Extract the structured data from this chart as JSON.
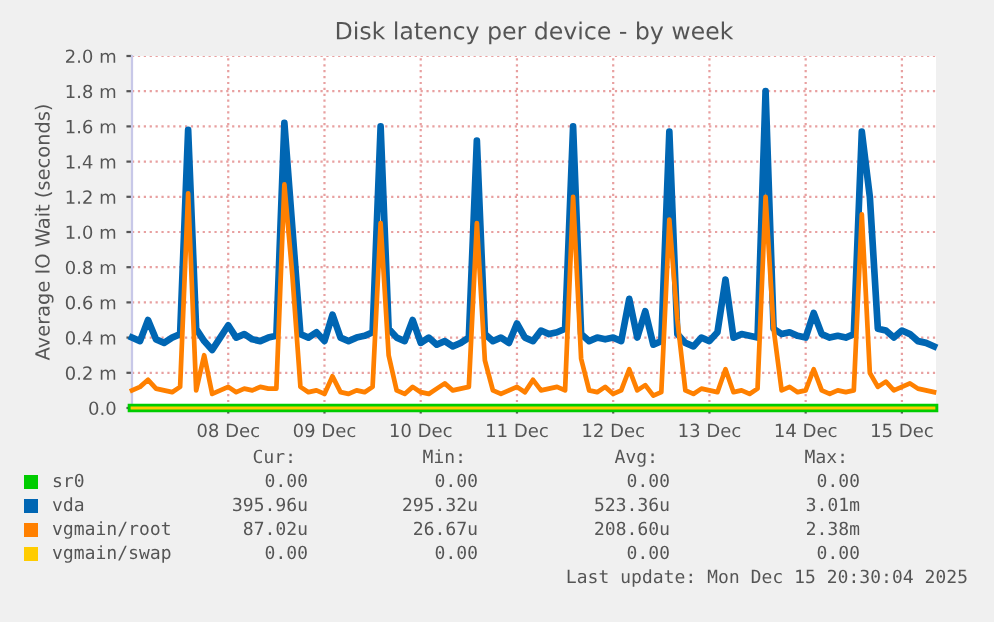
{
  "chart_data": {
    "type": "line",
    "title": "Disk latency per device - by week",
    "ylabel": "Average IO Wait (seconds)",
    "x": [
      "2025-12-07T12:00",
      "2025-12-07T14:00",
      "2025-12-07T16:00",
      "2025-12-07T18:00",
      "2025-12-07T20:00",
      "2025-12-07T22:00",
      "2025-12-08T00:00",
      "2025-12-08T02:00",
      "2025-12-08T04:00",
      "2025-12-08T06:00",
      "2025-12-08T08:00",
      "2025-12-08T10:00",
      "2025-12-08T12:00",
      "2025-12-08T14:00",
      "2025-12-08T16:00",
      "2025-12-08T18:00",
      "2025-12-08T20:00",
      "2025-12-08T22:00",
      "2025-12-09T00:00",
      "2025-12-09T02:00",
      "2025-12-09T04:00",
      "2025-12-09T06:00",
      "2025-12-09T08:00",
      "2025-12-09T10:00",
      "2025-12-09T12:00",
      "2025-12-09T14:00",
      "2025-12-09T16:00",
      "2025-12-09T18:00",
      "2025-12-09T20:00",
      "2025-12-09T22:00",
      "2025-12-10T00:00",
      "2025-12-10T02:00",
      "2025-12-10T04:00",
      "2025-12-10T06:00",
      "2025-12-10T08:00",
      "2025-12-10T10:00",
      "2025-12-10T12:00",
      "2025-12-10T14:00",
      "2025-12-10T16:00",
      "2025-12-10T18:00",
      "2025-12-10T20:00",
      "2025-12-10T22:00",
      "2025-12-11T00:00",
      "2025-12-11T02:00",
      "2025-12-11T04:00",
      "2025-12-11T06:00",
      "2025-12-11T08:00",
      "2025-12-11T10:00",
      "2025-12-11T12:00",
      "2025-12-11T14:00",
      "2025-12-11T16:00",
      "2025-12-11T18:00",
      "2025-12-11T20:00",
      "2025-12-11T22:00",
      "2025-12-12T00:00",
      "2025-12-12T02:00",
      "2025-12-12T04:00",
      "2025-12-12T06:00",
      "2025-12-12T08:00",
      "2025-12-12T10:00",
      "2025-12-12T12:00",
      "2025-12-12T14:00",
      "2025-12-12T16:00",
      "2025-12-12T18:00",
      "2025-12-12T20:00",
      "2025-12-12T22:00",
      "2025-12-13T00:00",
      "2025-12-13T02:00",
      "2025-12-13T04:00",
      "2025-12-13T06:00",
      "2025-12-13T08:00",
      "2025-12-13T10:00",
      "2025-12-13T12:00",
      "2025-12-13T14:00",
      "2025-12-13T16:00",
      "2025-12-13T18:00",
      "2025-12-13T20:00",
      "2025-12-13T22:00",
      "2025-12-14T00:00",
      "2025-12-14T02:00",
      "2025-12-14T04:00",
      "2025-12-14T06:00",
      "2025-12-14T08:00",
      "2025-12-14T10:00",
      "2025-12-14T12:00",
      "2025-12-14T14:00",
      "2025-12-14T16:00",
      "2025-12-14T18:00",
      "2025-12-14T20:00",
      "2025-12-14T22:00",
      "2025-12-15T00:00",
      "2025-12-15T02:00",
      "2025-12-15T04:00",
      "2025-12-15T06:00",
      "2025-12-15T08:00",
      "2025-12-15T10:00",
      "2025-12-15T12:00",
      "2025-12-15T14:00",
      "2025-12-15T16:00",
      "2025-12-15T18:00",
      "2025-12-15T20:00"
    ],
    "series": [
      {
        "name": "sr0",
        "color": "#00cc00",
        "x": [
          "2025-12-07T12:00",
          "2025-12-15T20:00"
        ],
        "values": [
          0,
          0
        ]
      },
      {
        "name": "vda",
        "color": "#0066b3",
        "values": [
          0.4,
          0.38,
          0.5,
          0.39,
          0.37,
          0.4,
          0.42,
          1.58,
          0.45,
          0.38,
          0.33,
          0.4,
          0.47,
          0.4,
          0.42,
          0.39,
          0.38,
          0.4,
          0.41,
          1.62,
          1.02,
          0.42,
          0.4,
          0.43,
          0.38,
          0.53,
          0.4,
          0.38,
          0.4,
          0.41,
          0.43,
          1.6,
          0.45,
          0.4,
          0.38,
          0.5,
          0.37,
          0.4,
          0.36,
          0.38,
          0.35,
          0.37,
          0.4,
          1.52,
          0.42,
          0.38,
          0.4,
          0.37,
          0.48,
          0.4,
          0.38,
          0.44,
          0.42,
          0.43,
          0.45,
          1.6,
          0.42,
          0.38,
          0.4,
          0.39,
          0.4,
          0.38,
          0.62,
          0.4,
          0.55,
          0.36,
          0.38,
          1.57,
          0.42,
          0.37,
          0.35,
          0.4,
          0.38,
          0.43,
          0.73,
          0.4,
          0.42,
          0.41,
          0.4,
          1.8,
          0.45,
          0.42,
          0.43,
          0.41,
          0.4,
          0.54,
          0.42,
          0.4,
          0.41,
          0.4,
          0.42,
          1.57,
          1.2,
          0.45,
          0.44,
          0.4,
          0.44,
          0.42,
          0.38,
          0.37,
          0.35
        ]
      },
      {
        "name": "vgmain/root",
        "color": "#ff8000",
        "values": [
          0.1,
          0.12,
          0.16,
          0.11,
          0.1,
          0.09,
          0.12,
          1.22,
          0.1,
          0.3,
          0.08,
          0.1,
          0.12,
          0.09,
          0.11,
          0.1,
          0.12,
          0.11,
          0.11,
          1.27,
          0.75,
          0.12,
          0.09,
          0.1,
          0.08,
          0.18,
          0.09,
          0.08,
          0.1,
          0.09,
          0.12,
          1.05,
          0.3,
          0.1,
          0.08,
          0.12,
          0.09,
          0.08,
          0.11,
          0.14,
          0.1,
          0.11,
          0.12,
          1.05,
          0.27,
          0.1,
          0.08,
          0.1,
          0.12,
          0.09,
          0.16,
          0.1,
          0.11,
          0.12,
          0.1,
          1.2,
          0.28,
          0.1,
          0.09,
          0.12,
          0.08,
          0.1,
          0.22,
          0.1,
          0.13,
          0.07,
          0.09,
          1.07,
          0.5,
          0.1,
          0.08,
          0.11,
          0.1,
          0.09,
          0.22,
          0.09,
          0.1,
          0.08,
          0.11,
          1.2,
          0.45,
          0.1,
          0.12,
          0.09,
          0.1,
          0.22,
          0.1,
          0.08,
          0.1,
          0.09,
          0.1,
          1.1,
          0.2,
          0.12,
          0.15,
          0.1,
          0.12,
          0.14,
          0.11,
          0.1,
          0.09
        ]
      },
      {
        "name": "vgmain/swap",
        "color": "#ffcc00",
        "x": [
          "2025-12-07T12:00",
          "2025-12-15T20:00"
        ],
        "values": [
          0,
          0
        ]
      }
    ],
    "xlim": [
      "2025-12-07T12:00",
      "2025-12-15T20:30"
    ],
    "xticks": [
      {
        "value": "2025-12-08T12:00",
        "label": "08 Dec"
      },
      {
        "value": "2025-12-09T12:00",
        "label": "09 Dec"
      },
      {
        "value": "2025-12-10T12:00",
        "label": "10 Dec"
      },
      {
        "value": "2025-12-11T12:00",
        "label": "11 Dec"
      },
      {
        "value": "2025-12-12T12:00",
        "label": "12 Dec"
      },
      {
        "value": "2025-12-13T12:00",
        "label": "13 Dec"
      },
      {
        "value": "2025-12-14T12:00",
        "label": "14 Dec"
      },
      {
        "value": "2025-12-15T12:00",
        "label": "15 Dec"
      }
    ],
    "ylim": [
      0,
      2.0
    ],
    "yticks": [
      {
        "value": 0,
        "label": "0.0"
      },
      {
        "value": 0.2,
        "label": "0.2 m"
      },
      {
        "value": 0.4,
        "label": "0.4 m"
      },
      {
        "value": 0.6,
        "label": "0.6 m"
      },
      {
        "value": 0.8,
        "label": "0.8 m"
      },
      {
        "value": 1.0,
        "label": "1.0 m"
      },
      {
        "value": 1.2,
        "label": "1.2 m"
      },
      {
        "value": 1.4,
        "label": "1.4 m"
      },
      {
        "value": 1.6,
        "label": "1.6 m"
      },
      {
        "value": 1.8,
        "label": "1.8 m"
      },
      {
        "value": 2.0,
        "label": "2.0 m"
      }
    ],
    "grid": true,
    "legend": "bottom",
    "marker": "none",
    "line_style": "solid",
    "annotations": [
      "Cur:",
      "Min:",
      "Avg:",
      "Max:",
      "0.00",
      "0.00",
      "0.00",
      "0.00",
      "395.96u",
      "295.32u",
      "523.36u",
      "3.01m",
      "87.02u",
      "26.67u",
      "208.60u",
      "2.38m",
      "0.00",
      "0.00",
      "0.00",
      "0.00",
      "Last update: Mon Dec 15 20:30:04 2025"
    ]
  }
}
